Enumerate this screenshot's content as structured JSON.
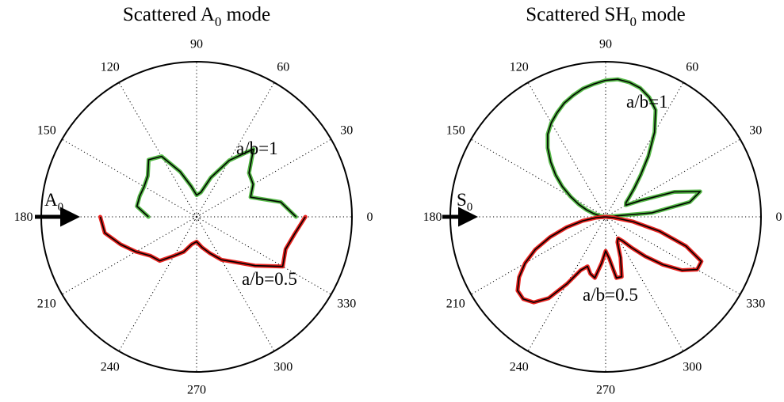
{
  "chart_data": [
    {
      "type": "polar",
      "title_prefix": "Scattered A",
      "title_sub": "0",
      "title_suffix": " mode",
      "angular_ticks": [
        "0",
        "30",
        "60",
        "90",
        "120",
        "150",
        "180",
        "210",
        "240",
        "270",
        "300",
        "330"
      ],
      "grid": true,
      "incident_label": "A",
      "incident_sub": "0",
      "series": [
        {
          "label": "a/b=1",
          "color": "#55b947",
          "reference_color": "#000000",
          "angles_deg": [
            0,
            10,
            20,
            30,
            40,
            50,
            60,
            70,
            80,
            90,
            100,
            110,
            120,
            130,
            140,
            150,
            160,
            170,
            180
          ],
          "r": [
            0.64,
            0.55,
            0.37,
            0.42,
            0.44,
            0.57,
            0.42,
            0.27,
            0.16,
            0.14,
            0.2,
            0.31,
            0.45,
            0.48,
            0.41,
            0.39,
            0.39,
            0.39,
            0.31
          ]
        },
        {
          "label": "a/b=0.5",
          "color": "#e8231f",
          "reference_color": "#000000",
          "angles_deg": [
            180,
            190,
            200,
            210,
            220,
            230,
            240,
            250,
            260,
            270,
            280,
            290,
            300,
            310,
            320,
            330,
            340,
            350,
            360
          ],
          "r": [
            0.62,
            0.6,
            0.52,
            0.45,
            0.39,
            0.37,
            0.29,
            0.24,
            0.18,
            0.16,
            0.2,
            0.25,
            0.32,
            0.38,
            0.49,
            0.64,
            0.61,
            0.64,
            0.7
          ]
        }
      ]
    },
    {
      "type": "polar",
      "title_prefix": "Scattered SH",
      "title_sub": "0",
      "title_suffix": " mode",
      "angular_ticks": [
        "0",
        "30",
        "60",
        "90",
        "120",
        "150",
        "180",
        "210",
        "240",
        "270",
        "300",
        "330"
      ],
      "grid": true,
      "incident_label": "S",
      "incident_sub": "0",
      "series": [
        {
          "label": "a/b=1",
          "color": "#55b947",
          "reference_color": "#000000",
          "angles_deg": [
            0,
            5,
            10,
            15,
            20,
            25,
            30,
            35,
            40,
            45,
            50,
            55,
            60,
            65,
            70,
            75,
            80,
            85,
            90,
            95,
            100,
            105,
            110,
            115,
            120,
            125,
            130,
            135,
            140,
            145,
            150,
            155,
            160,
            165,
            170,
            175,
            180
          ],
          "r": [
            0.0,
            0.3,
            0.55,
            0.63,
            0.47,
            0.25,
            0.15,
            0.16,
            0.2,
            0.26,
            0.35,
            0.48,
            0.63,
            0.76,
            0.82,
            0.86,
            0.88,
            0.89,
            0.88,
            0.86,
            0.84,
            0.81,
            0.78,
            0.74,
            0.7,
            0.65,
            0.58,
            0.5,
            0.42,
            0.34,
            0.26,
            0.19,
            0.13,
            0.08,
            0.04,
            0.01,
            0.0
          ]
        },
        {
          "label": "a/b=0.5",
          "color": "#e8231f",
          "reference_color": "#000000",
          "angles_deg": [
            180,
            185,
            190,
            195,
            200,
            205,
            210,
            215,
            220,
            225,
            230,
            235,
            240,
            245,
            250,
            255,
            260,
            265,
            270,
            275,
            280,
            285,
            290,
            295,
            300,
            305,
            310,
            315,
            320,
            325,
            330,
            335,
            340,
            345,
            350,
            355,
            360
          ],
          "r": [
            0.0,
            0.06,
            0.15,
            0.26,
            0.38,
            0.5,
            0.6,
            0.68,
            0.74,
            0.75,
            0.72,
            0.64,
            0.5,
            0.38,
            0.34,
            0.38,
            0.4,
            0.3,
            0.22,
            0.27,
            0.4,
            0.4,
            0.28,
            0.18,
            0.16,
            0.19,
            0.26,
            0.36,
            0.48,
            0.6,
            0.68,
            0.68,
            0.55,
            0.36,
            0.18,
            0.05,
            0.0
          ]
        }
      ]
    }
  ]
}
